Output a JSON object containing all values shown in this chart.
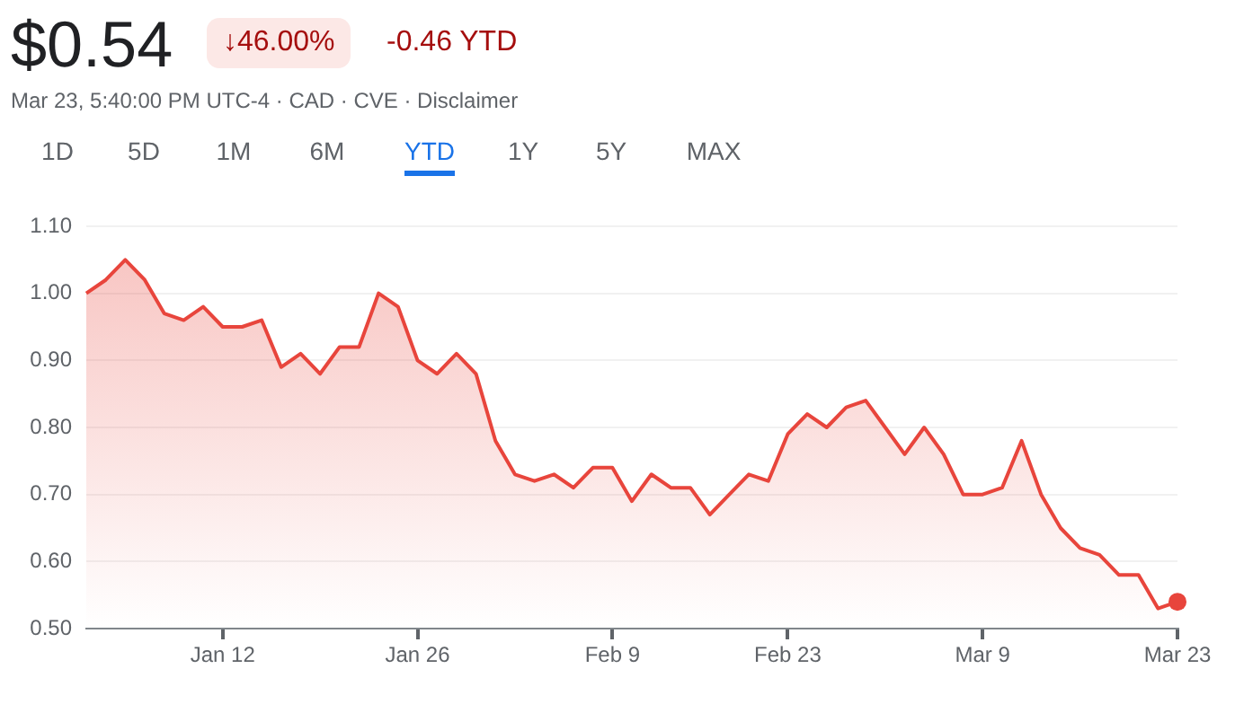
{
  "chart_data": {
    "type": "area",
    "title": "$0.54",
    "subtitle": "Mar 23, 5:40:00 PM UTC-4 · CAD · CVE · Disclaimer",
    "annotations": [
      "↓46.00%",
      "-0.46 YTD",
      "1D",
      "5D",
      "1M",
      "6M",
      "YTD",
      "1Y",
      "5Y",
      "MAX"
    ],
    "categories": [
      null,
      null,
      null,
      null,
      null,
      null,
      null,
      "Jan 12",
      null,
      null,
      null,
      null,
      null,
      null,
      null,
      null,
      null,
      "Jan 26",
      null,
      null,
      null,
      null,
      null,
      null,
      null,
      null,
      null,
      "Feb 9",
      null,
      null,
      null,
      null,
      null,
      null,
      null,
      null,
      "Feb 23",
      null,
      null,
      null,
      null,
      null,
      null,
      null,
      null,
      null,
      "Mar 9",
      null,
      null,
      null,
      null,
      null,
      null,
      null,
      null,
      null,
      "Mar 23"
    ],
    "series": [
      {
        "color": "#e8453c",
        "values": [
          1.0,
          1.02,
          1.05,
          1.02,
          0.97,
          0.96,
          0.98,
          0.95,
          0.95,
          0.96,
          0.89,
          0.91,
          0.88,
          0.92,
          0.92,
          1.0,
          0.98,
          0.9,
          0.88,
          0.91,
          0.88,
          0.78,
          0.73,
          0.72,
          0.73,
          0.71,
          0.74,
          0.74,
          0.69,
          0.73,
          0.71,
          0.71,
          0.67,
          0.7,
          0.73,
          0.72,
          0.79,
          0.82,
          0.8,
          0.83,
          0.84,
          0.8,
          0.76,
          0.8,
          0.76,
          0.7,
          0.7,
          0.71,
          0.78,
          0.7,
          0.65,
          0.62,
          0.61,
          0.58,
          0.58,
          0.53,
          0.54
        ]
      }
    ],
    "ylim": [
      0.5,
      1.1
    ],
    "yticks": [
      {
        "value": 0.5,
        "label": "0.50"
      },
      {
        "value": 0.6,
        "label": "0.60"
      },
      {
        "value": 0.7,
        "label": "0.70"
      },
      {
        "value": 0.8,
        "label": "0.80"
      },
      {
        "value": 0.9,
        "label": "0.90"
      },
      {
        "value": 1.0,
        "label": "1.00"
      },
      {
        "value": 1.1,
        "label": "1.10"
      }
    ],
    "grid": "y",
    "legend": false
  }
}
